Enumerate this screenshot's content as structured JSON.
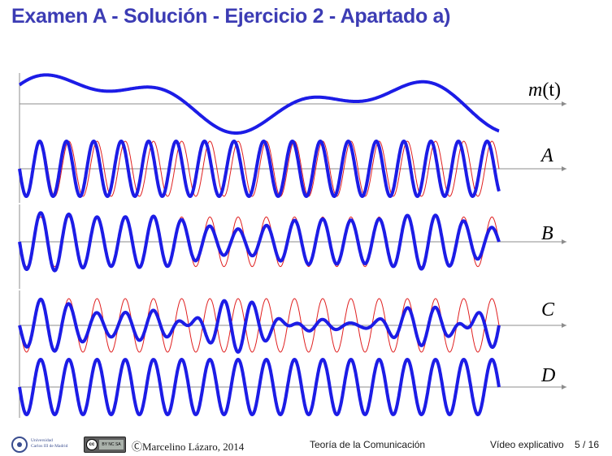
{
  "title": "Examen A - Solución - Ejercicio 2 - Apartado a)",
  "colors": {
    "title": "#3c3cb4",
    "signal": "#1c1ce6",
    "carrier": "#e02020",
    "axis": "#8c8c8c"
  },
  "signals": [
    {
      "key": "m",
      "label_prefix": "m",
      "label_suffix": "(t)",
      "kind": "message"
    },
    {
      "key": "A",
      "label": "A",
      "kind": "phase_modulated"
    },
    {
      "key": "B",
      "label": "B",
      "kind": "am_with_carrier"
    },
    {
      "key": "C",
      "label": "C",
      "kind": "dsb_suppressed_carrier"
    },
    {
      "key": "D",
      "label": "D",
      "kind": "unmodulated_carrier"
    }
  ],
  "footer": {
    "university_line1": "Universidad",
    "university_line2": "Carlos III de Madrid",
    "license_icon": "creative-commons-by-nc-sa-icon",
    "license_circle": "cc",
    "license_strip": "BY NC SA",
    "author": "ⒸMarcelino Lázaro, 2014",
    "course": "Teoría de la Comunicación",
    "video_label": "Vídeo explicativo",
    "page": "5 / 16"
  }
}
